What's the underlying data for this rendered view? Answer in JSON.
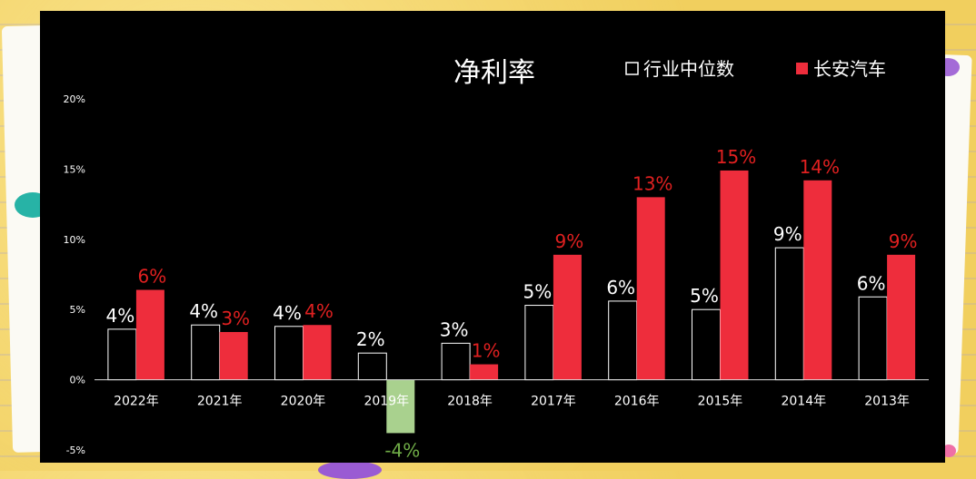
{
  "chart_data": {
    "type": "bar",
    "title": "净利率",
    "categories": [
      "2022年",
      "2021年",
      "2020年",
      "2019年",
      "2018年",
      "2017年",
      "2016年",
      "2015年",
      "2014年",
      "2013年"
    ],
    "series": [
      {
        "name": "行业中位数",
        "values": [
          3.6,
          3.9,
          3.8,
          1.9,
          2.6,
          5.3,
          5.6,
          5.0,
          9.4,
          5.9
        ],
        "labels": [
          "4%",
          "4%",
          "4%",
          "2%",
          "3%",
          "5%",
          "6%",
          "5%",
          "9%",
          "6%"
        ],
        "color": "#000000",
        "stroke": "#ffffff"
      },
      {
        "name": "长安汽车",
        "values": [
          6.4,
          3.4,
          3.9,
          -3.8,
          1.1,
          8.9,
          13.0,
          14.9,
          14.2,
          8.9
        ],
        "labels": [
          "6%",
          "3%",
          "4%",
          "-4%",
          "1%",
          "9%",
          "13%",
          "15%",
          "14%",
          "9%"
        ],
        "color": "#ee2d3c",
        "negative_color": "#a9d18e"
      }
    ],
    "yticks": [
      "20%",
      "15%",
      "10%",
      "5%",
      "0%",
      "-5%"
    ],
    "ylim": [
      -5,
      20
    ],
    "legend": "top-right",
    "grid": false
  },
  "colors": {
    "background": "#000000",
    "axis_line": "#d9d9d9",
    "title_text": "#ffffff",
    "industry_label": "#ffffff",
    "changan_label": "#e02020",
    "negative_label": "#70ad47"
  }
}
